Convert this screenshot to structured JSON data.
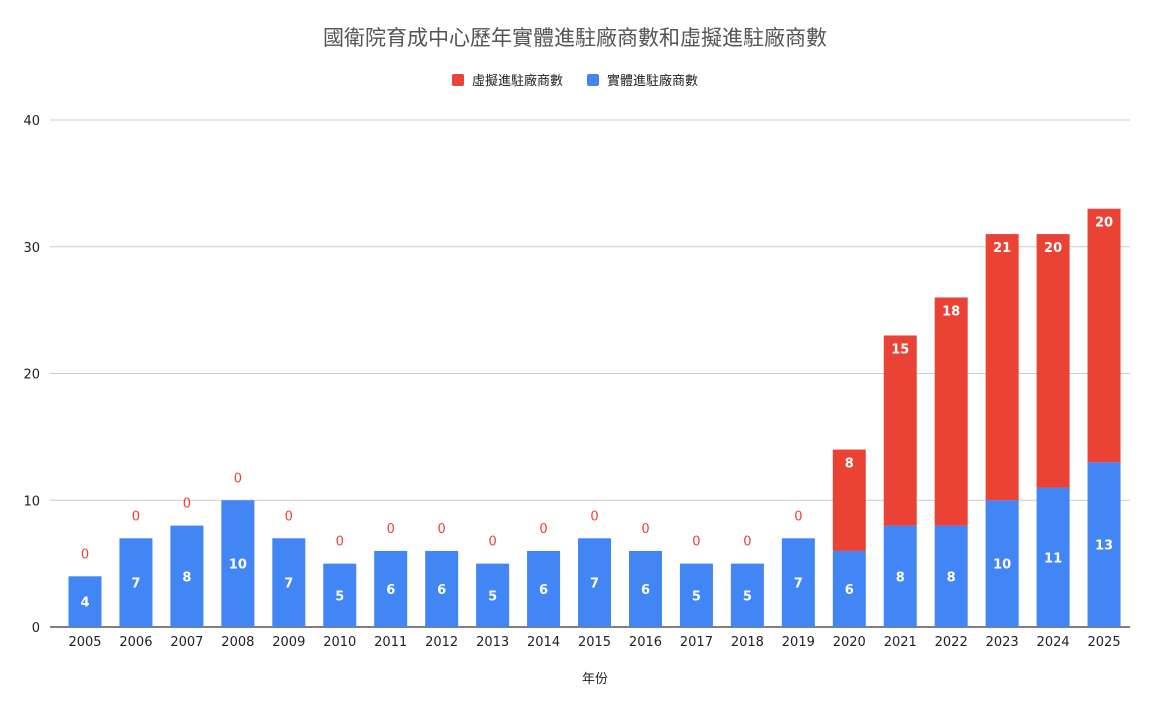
{
  "chart_data": {
    "type": "bar",
    "stacked": true,
    "title": "國衛院育成中心歷年實體進駐廠商數和虛擬進駐廠商數",
    "xlabel": "年份",
    "ylabel": "",
    "ylim": [
      0,
      40
    ],
    "yticks": [
      0,
      10,
      20,
      30,
      40
    ],
    "grid": true,
    "legend_position": "top-center",
    "categories": [
      "2005",
      "2006",
      "2007",
      "2008",
      "2009",
      "2010",
      "2011",
      "2012",
      "2013",
      "2014",
      "2015",
      "2016",
      "2017",
      "2018",
      "2019",
      "2020",
      "2021",
      "2022",
      "2023",
      "2024",
      "2025"
    ],
    "series": [
      {
        "name": "實體進駐廠商數",
        "color": "#4285f4",
        "values": [
          4,
          7,
          8,
          10,
          7,
          5,
          6,
          6,
          5,
          6,
          7,
          6,
          5,
          5,
          7,
          6,
          8,
          8,
          10,
          11,
          13
        ]
      },
      {
        "name": "虛擬進駐廠商數",
        "color": "#ea4335",
        "values": [
          0,
          0,
          0,
          0,
          0,
          0,
          0,
          0,
          0,
          0,
          0,
          0,
          0,
          0,
          0,
          8,
          15,
          18,
          21,
          20,
          20
        ]
      }
    ],
    "legend_order": [
      1,
      0
    ]
  }
}
